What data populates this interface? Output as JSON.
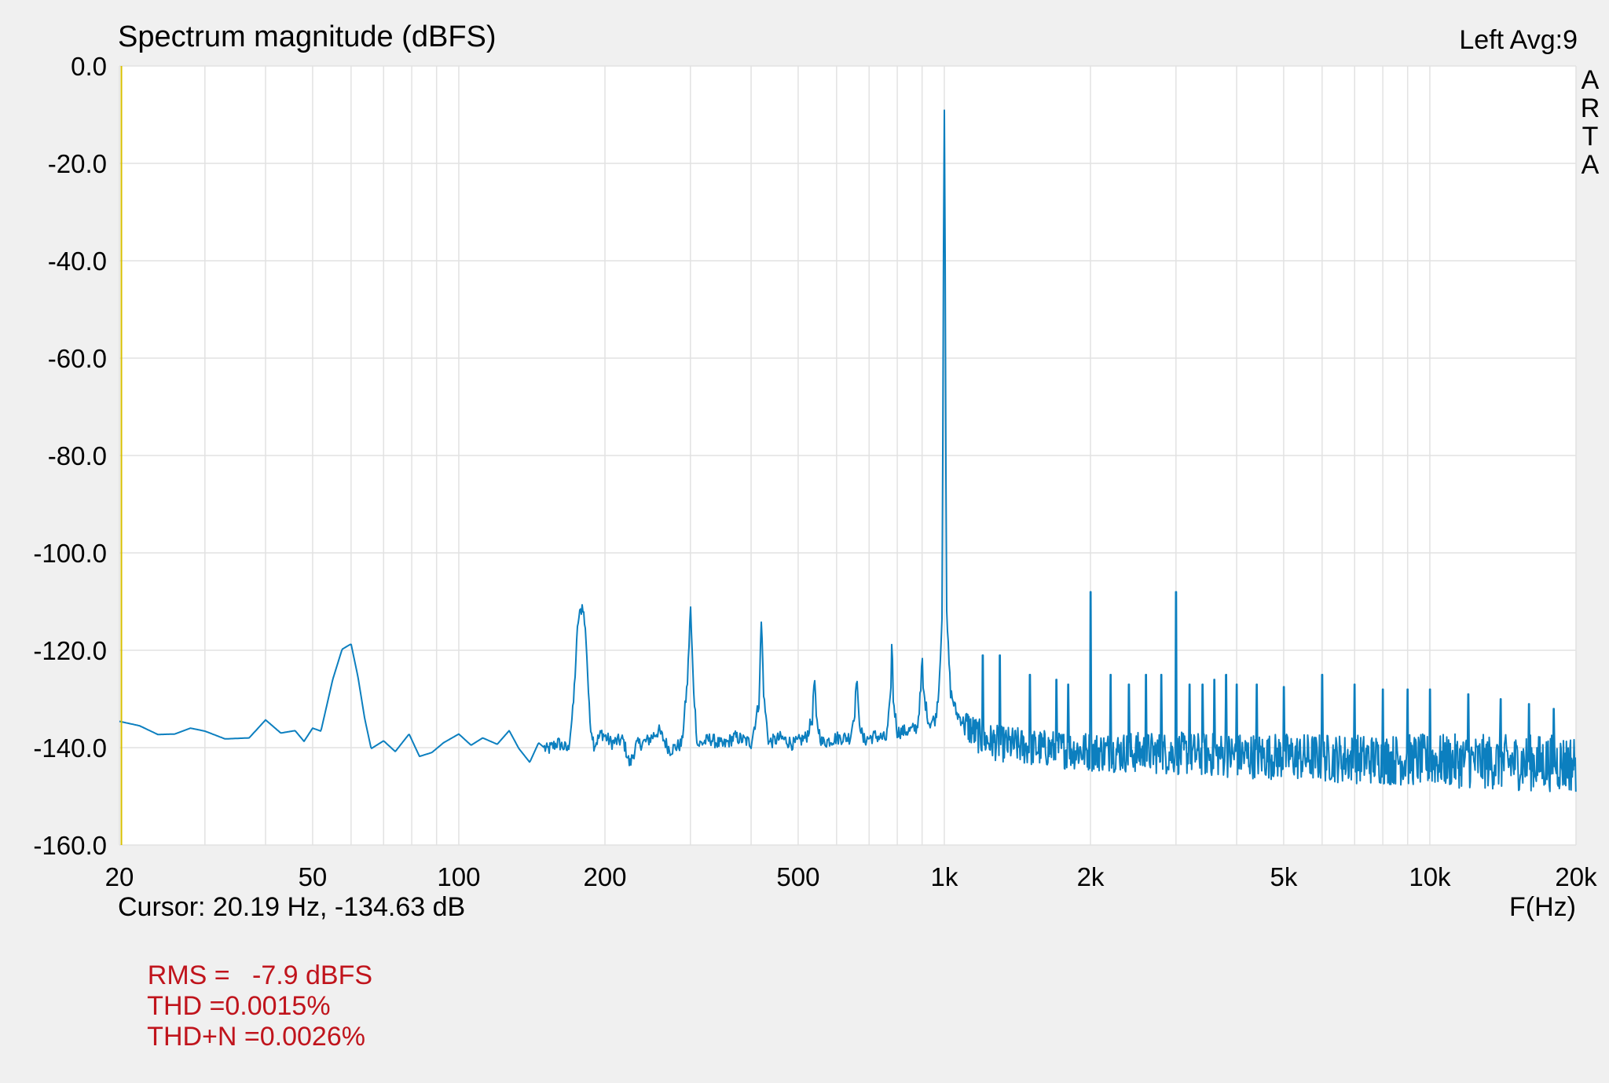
{
  "header": {
    "title": "Spectrum magnitude (dBFS)",
    "channel_info": "Left  Avg:9"
  },
  "brand": {
    "letters": [
      "A",
      "R",
      "T",
      "A"
    ]
  },
  "footer": {
    "cursor_readout": "Cursor: 20.19 Hz, -134.63 dB",
    "xlabel": "F(Hz)",
    "metrics": {
      "rms": "RMS =   -7.9 dBFS",
      "thd": "THD =0.0015%",
      "thdn": "THD+N =0.0026%"
    }
  },
  "colors": {
    "background": "#f0f0f0",
    "plot_area": "#ffffff",
    "grid": "#e2e2e2",
    "trace": "#0c7fbf",
    "metrics_text": "#c0141c",
    "cursor_line": "#d8c000"
  },
  "chart_data": {
    "type": "line",
    "title": "Spectrum magnitude (dBFS)",
    "xlabel": "F(Hz)",
    "ylabel": "",
    "x_scale": "log",
    "xlim": [
      20,
      20000
    ],
    "ylim": [
      -160,
      0
    ],
    "grid": true,
    "yticks": [
      0,
      -20,
      -40,
      -60,
      -80,
      -100,
      -120,
      -140,
      -160
    ],
    "ytick_labels": [
      "0.0",
      "-20.0",
      "-40.0",
      "-60.0",
      "-80.0",
      "-100.0",
      "-120.0",
      "-140.0",
      "-160.0"
    ],
    "xticks": [
      20,
      50,
      100,
      200,
      500,
      1000,
      2000,
      5000,
      10000,
      20000
    ],
    "xtick_labels": [
      "20",
      "50",
      "100",
      "200",
      "500",
      "1k",
      "2k",
      "5k",
      "10k",
      "20k"
    ],
    "cursor": {
      "frequency_hz": 20.19,
      "level_db": -134.63
    },
    "series": [
      {
        "points": [
          [
            20,
            -134.6
          ],
          [
            22,
            -135.5
          ],
          [
            24,
            -137.3
          ],
          [
            26,
            -137.2
          ],
          [
            28,
            -136.0
          ],
          [
            30,
            -136.6
          ],
          [
            33,
            -138.2
          ],
          [
            37,
            -138.0
          ],
          [
            40,
            -134.3
          ],
          [
            43,
            -137.0
          ],
          [
            46,
            -136.5
          ],
          [
            48,
            -138.7
          ],
          [
            50,
            -136.0
          ],
          [
            52,
            -136.6
          ],
          [
            55,
            -126.0
          ],
          [
            57.5,
            -119.8
          ],
          [
            60,
            -118.7
          ],
          [
            62,
            -125.5
          ],
          [
            64,
            -134.0
          ],
          [
            66,
            -140.2
          ],
          [
            70,
            -138.6
          ],
          [
            74,
            -140.8
          ],
          [
            79,
            -137.2
          ],
          [
            83,
            -141.8
          ],
          [
            88,
            -141.0
          ],
          [
            93,
            -139.0
          ],
          [
            100,
            -137.2
          ],
          [
            106,
            -139.5
          ],
          [
            112,
            -138.0
          ],
          [
            120,
            -139.3
          ],
          [
            127,
            -136.5
          ],
          [
            133,
            -140.2
          ],
          [
            140,
            -143.0
          ],
          [
            146,
            -139.0
          ],
          [
            152,
            -140.5
          ],
          [
            160,
            -139.0
          ],
          [
            168,
            -140.5
          ],
          [
            172,
            -132.0
          ],
          [
            176,
            -114.0
          ],
          [
            180,
            -110.5
          ],
          [
            183,
            -118.0
          ],
          [
            186,
            -134.0
          ],
          [
            190,
            -139.5
          ],
          [
            197,
            -137.0
          ],
          [
            206,
            -139.0
          ],
          [
            218,
            -138.4
          ],
          [
            225,
            -143.5
          ],
          [
            232,
            -139.5
          ],
          [
            245,
            -138.6
          ],
          [
            258,
            -136.5
          ],
          [
            272,
            -140.5
          ],
          [
            288,
            -139.2
          ],
          [
            296,
            -126.0
          ],
          [
            300,
            -111.0
          ],
          [
            304,
            -126.5
          ],
          [
            310,
            -139.5
          ],
          [
            330,
            -138.2
          ],
          [
            350,
            -139.6
          ],
          [
            370,
            -137.8
          ],
          [
            400,
            -139.0
          ],
          [
            415,
            -131.0
          ],
          [
            420,
            -113.5
          ],
          [
            425,
            -130.0
          ],
          [
            435,
            -139.0
          ],
          [
            460,
            -138.0
          ],
          [
            490,
            -139.3
          ],
          [
            520,
            -137.8
          ],
          [
            535,
            -134.0
          ],
          [
            540,
            -125.0
          ],
          [
            545,
            -134.5
          ],
          [
            560,
            -139.0
          ],
          [
            600,
            -138.0
          ],
          [
            640,
            -137.9
          ],
          [
            655,
            -132.0
          ],
          [
            660,
            -124.0
          ],
          [
            665,
            -133.0
          ],
          [
            680,
            -138.5
          ],
          [
            720,
            -137.6
          ],
          [
            760,
            -138.2
          ],
          [
            775,
            -130.0
          ],
          [
            780,
            -117.0
          ],
          [
            785,
            -130.0
          ],
          [
            800,
            -136.8
          ],
          [
            850,
            -136.5
          ],
          [
            880,
            -135.8
          ],
          [
            895,
            -128.0
          ],
          [
            900,
            -121.0
          ],
          [
            905,
            -128.5
          ],
          [
            930,
            -135.0
          ],
          [
            960,
            -134.0
          ],
          [
            975,
            -127.5
          ],
          [
            990,
            -112.0
          ],
          [
            996,
            -40.0
          ],
          [
            1000,
            -8.0
          ],
          [
            1004,
            -40.0
          ],
          [
            1010,
            -112.0
          ],
          [
            1030,
            -128.5
          ],
          [
            1060,
            -133.0
          ],
          [
            1100,
            -135.0
          ],
          [
            1150,
            -136.8
          ],
          [
            1200,
            -138.3
          ],
          [
            1300,
            -139.2
          ],
          [
            1400,
            -139.5
          ],
          [
            1500,
            -140.0
          ],
          [
            1700,
            -140.3
          ],
          [
            1900,
            -140.6
          ],
          [
            2000,
            -140.8
          ],
          [
            2500,
            -141.0
          ],
          [
            3000,
            -141.2
          ],
          [
            4000,
            -141.6
          ],
          [
            5000,
            -141.8
          ],
          [
            7000,
            -142.3
          ],
          [
            10000,
            -142.6
          ],
          [
            14000,
            -143.0
          ],
          [
            20000,
            -143.2
          ]
        ],
        "spurs": [
          [
            1200,
            -121.0
          ],
          [
            1300,
            -121.0
          ],
          [
            1500,
            -125.0
          ],
          [
            1700,
            -126.0
          ],
          [
            1800,
            -127.0
          ],
          [
            2000,
            -108.0
          ],
          [
            2200,
            -125.0
          ],
          [
            2400,
            -127.0
          ],
          [
            2600,
            -125.0
          ],
          [
            2800,
            -125.0
          ],
          [
            3000,
            -108.0
          ],
          [
            3200,
            -127.0
          ],
          [
            3400,
            -127.0
          ],
          [
            3600,
            -126.0
          ],
          [
            3800,
            -125.0
          ],
          [
            4000,
            -127.0
          ],
          [
            4400,
            -127.0
          ],
          [
            5000,
            -127.5
          ],
          [
            6000,
            -125.0
          ],
          [
            7000,
            -127.0
          ],
          [
            8000,
            -128.0
          ],
          [
            9000,
            -128.0
          ],
          [
            10000,
            -128.0
          ],
          [
            12000,
            -129.0
          ],
          [
            14000,
            -130.0
          ],
          [
            16000,
            -131.0
          ],
          [
            18000,
            -132.0
          ]
        ]
      }
    ]
  }
}
